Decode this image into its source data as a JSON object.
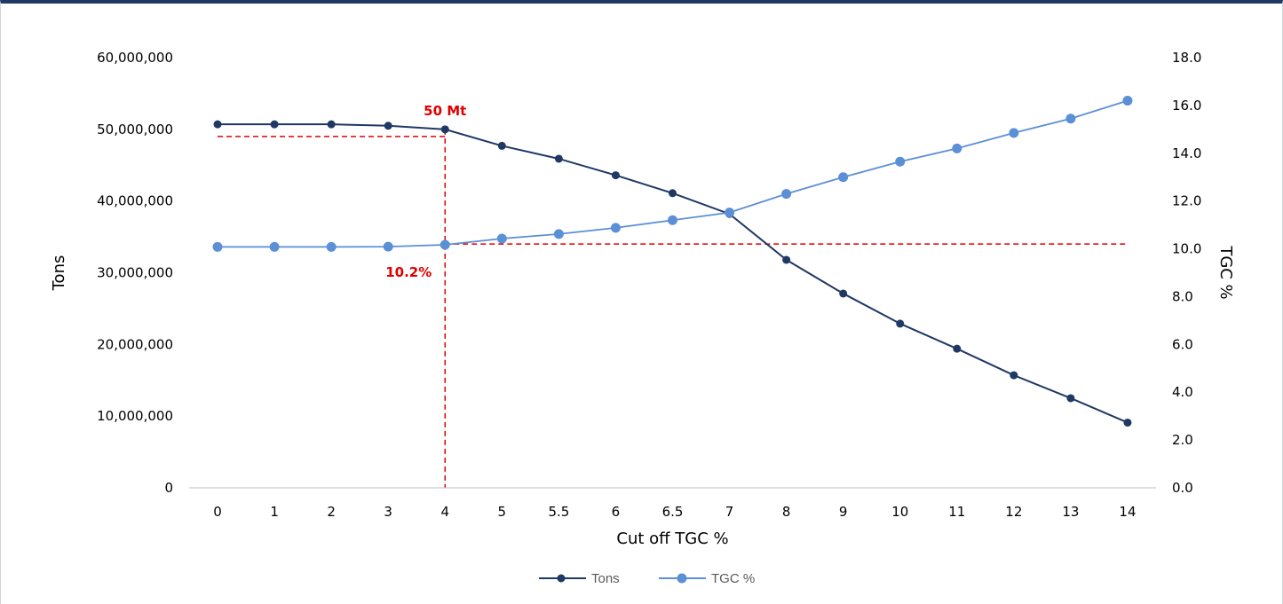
{
  "chart_data": {
    "type": "line",
    "xlabel": "Cut off TGC %",
    "ylabel_left": "Tons",
    "ylabel_right": "TGC %",
    "categories": [
      "0",
      "1",
      "2",
      "3",
      "4",
      "5",
      "5.5",
      "6",
      "6.5",
      "7",
      "8",
      "9",
      "10",
      "11",
      "12",
      "13",
      "14"
    ],
    "ylim_left": [
      0,
      60000000
    ],
    "ylim_right": [
      0,
      18
    ],
    "yticks_left": [
      "0",
      "10,000,000",
      "20,000,000",
      "30,000,000",
      "40,000,000",
      "50,000,000",
      "60,000,000"
    ],
    "yticks_right": [
      "0.0",
      "2.0",
      "4.0",
      "6.0",
      "8.0",
      "10.0",
      "12.0",
      "14.0",
      "16.0",
      "18.0"
    ],
    "grid": false,
    "legend_position": "bottom",
    "series": [
      {
        "name": "Tons",
        "axis": "left",
        "color": "#1F3864",
        "values": [
          50700000,
          50700000,
          50700000,
          50500000,
          50000000,
          47700000,
          45900000,
          43600000,
          41100000,
          38200000,
          31800000,
          27100000,
          22900000,
          19400000,
          15700000,
          12500000,
          9100000
        ]
      },
      {
        "name": "TGC %",
        "axis": "right",
        "color": "#5B8FD6",
        "values": [
          10.08,
          10.08,
          10.08,
          10.09,
          10.17,
          10.43,
          10.62,
          10.88,
          11.2,
          11.52,
          12.3,
          13.0,
          13.65,
          14.2,
          14.85,
          15.45,
          16.2
        ]
      }
    ],
    "annotations": [
      {
        "text": "50 Mt",
        "color": "#E00000",
        "x": "4",
        "y_left": 50000000
      },
      {
        "text": "10.2%",
        "color": "#E00000",
        "x": "4",
        "y_right": 10.2
      }
    ],
    "reference_lines": {
      "color": "#E00000",
      "vertical_x": "4",
      "horizontal_left": 49000000,
      "horizontal_right": 10.2
    }
  }
}
